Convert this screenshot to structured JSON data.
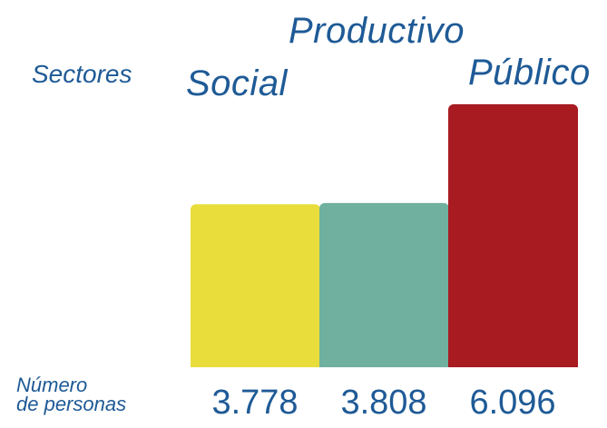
{
  "labels": {
    "sectores": "Sectores",
    "numero_line1": "Número",
    "numero_line2": "de personas"
  },
  "chart_data": {
    "type": "bar",
    "categories": [
      "Social",
      "Productivo",
      "Público"
    ],
    "values": [
      3778,
      3808,
      6096
    ],
    "value_labels": [
      "3.778",
      "3.808",
      "6.096"
    ],
    "colors": [
      "#e8dd3a",
      "#6fb09e",
      "#a81b21"
    ],
    "ylim": [
      0,
      6096
    ],
    "grid": false,
    "legend": "none"
  }
}
